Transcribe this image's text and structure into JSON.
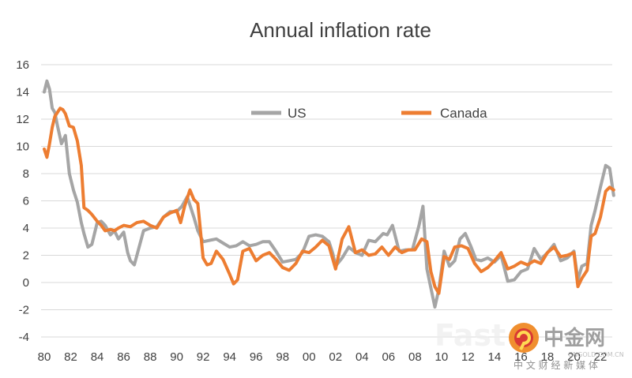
{
  "chart_data": {
    "type": "line",
    "title": "Annual inflation rate",
    "xlabel": "",
    "ylabel": "",
    "xlim": [
      1980,
      2023
    ],
    "ylim": [
      -4,
      16
    ],
    "yticks": [
      -4,
      -2,
      0,
      2,
      4,
      6,
      8,
      10,
      12,
      14,
      16
    ],
    "xtick_labels": [
      "80",
      "82",
      "84",
      "86",
      "88",
      "90",
      "92",
      "94",
      "96",
      "98",
      "00",
      "02",
      "04",
      "06",
      "08",
      "10",
      "12",
      "14",
      "16",
      "18",
      "20",
      "22"
    ],
    "xtick_years": [
      1980,
      1982,
      1984,
      1986,
      1988,
      1990,
      1992,
      1994,
      1996,
      1998,
      2000,
      2002,
      2004,
      2006,
      2008,
      2010,
      2012,
      2014,
      2016,
      2018,
      2020,
      2022
    ],
    "grid": true,
    "legend_position": "top-center",
    "series": [
      {
        "name": "US",
        "color": "#a5a5a5",
        "x": [
          1980.0,
          1980.2,
          1980.4,
          1980.6,
          1980.8,
          1981.0,
          1981.3,
          1981.6,
          1981.9,
          1982.2,
          1982.5,
          1982.8,
          1983.0,
          1983.3,
          1983.6,
          1984.0,
          1984.3,
          1984.6,
          1985.0,
          1985.3,
          1985.6,
          1986.0,
          1986.3,
          1986.5,
          1986.8,
          1987.0,
          1987.5,
          1988.0,
          1988.5,
          1989.0,
          1989.5,
          1990.0,
          1990.4,
          1990.8,
          1991.0,
          1991.3,
          1991.6,
          1992.0,
          1992.5,
          1993.0,
          1993.5,
          1994.0,
          1994.5,
          1995.0,
          1995.5,
          1996.0,
          1996.5,
          1997.0,
          1997.5,
          1998.0,
          1998.5,
          1999.0,
          1999.5,
          2000.0,
          2000.5,
          2001.0,
          2001.5,
          2001.8,
          2002.0,
          2002.5,
          2003.0,
          2003.5,
          2004.0,
          2004.5,
          2005.0,
          2005.6,
          2005.9,
          2006.3,
          2006.8,
          2007.3,
          2007.8,
          2008.3,
          2008.6,
          2008.9,
          2009.2,
          2009.5,
          2009.8,
          2010.2,
          2010.6,
          2011.0,
          2011.4,
          2011.8,
          2012.2,
          2012.6,
          2013.0,
          2013.5,
          2014.0,
          2014.5,
          2015.0,
          2015.5,
          2016.0,
          2016.5,
          2017.0,
          2017.5,
          2018.0,
          2018.5,
          2019.0,
          2019.5,
          2020.0,
          2020.3,
          2020.6,
          2021.0,
          2021.3,
          2021.6,
          2022.0,
          2022.4,
          2022.7,
          2023.0
        ],
        "y": [
          14.0,
          14.8,
          14.2,
          12.8,
          12.5,
          11.5,
          10.2,
          10.8,
          8.0,
          6.8,
          5.9,
          4.4,
          3.6,
          2.6,
          2.8,
          4.4,
          4.5,
          4.2,
          3.5,
          3.8,
          3.2,
          3.7,
          2.2,
          1.6,
          1.3,
          2.0,
          3.8,
          4.0,
          4.1,
          4.8,
          5.2,
          5.2,
          5.6,
          6.3,
          5.7,
          4.8,
          3.8,
          3.0,
          3.1,
          3.2,
          2.9,
          2.6,
          2.7,
          3.0,
          2.7,
          2.8,
          3.0,
          3.0,
          2.3,
          1.5,
          1.6,
          1.7,
          2.2,
          3.4,
          3.5,
          3.4,
          3.0,
          2.1,
          1.2,
          1.8,
          2.6,
          2.2,
          2.0,
          3.1,
          3.0,
          3.6,
          3.5,
          4.2,
          2.3,
          2.4,
          2.4,
          4.2,
          5.6,
          1.0,
          -0.4,
          -1.8,
          -0.5,
          2.3,
          1.2,
          1.6,
          3.2,
          3.6,
          2.7,
          1.7,
          1.6,
          1.8,
          1.5,
          2.0,
          0.1,
          0.2,
          0.8,
          1.0,
          2.5,
          1.7,
          2.2,
          2.8,
          1.6,
          1.8,
          2.3,
          0.2,
          1.2,
          1.4,
          4.2,
          5.3,
          7.0,
          8.6,
          8.4,
          6.4
        ]
      },
      {
        "name": "Canada",
        "color": "#ed7d31",
        "x": [
          1980.0,
          1980.2,
          1980.4,
          1980.6,
          1980.8,
          1981.0,
          1981.2,
          1981.4,
          1981.6,
          1981.9,
          1982.2,
          1982.5,
          1982.8,
          1983.0,
          1983.3,
          1983.6,
          1984.0,
          1984.3,
          1984.6,
          1985.0,
          1985.3,
          1985.6,
          1986.0,
          1986.5,
          1987.0,
          1987.5,
          1988.0,
          1988.5,
          1989.0,
          1989.5,
          1990.0,
          1990.3,
          1990.6,
          1991.0,
          1991.3,
          1991.6,
          1992.0,
          1992.3,
          1992.6,
          1993.0,
          1993.5,
          1994.0,
          1994.3,
          1994.6,
          1995.0,
          1995.5,
          1996.0,
          1996.5,
          1997.0,
          1997.5,
          1998.0,
          1998.5,
          1999.0,
          1999.5,
          2000.0,
          2000.5,
          2001.0,
          2001.5,
          2002.0,
          2002.5,
          2003.0,
          2003.5,
          2004.0,
          2004.5,
          2005.0,
          2005.5,
          2006.0,
          2006.5,
          2007.0,
          2007.5,
          2008.0,
          2008.5,
          2008.9,
          2009.2,
          2009.5,
          2009.8,
          2010.2,
          2010.6,
          2011.0,
          2011.5,
          2012.0,
          2012.5,
          2013.0,
          2013.5,
          2014.0,
          2014.5,
          2015.0,
          2015.5,
          2016.0,
          2016.5,
          2017.0,
          2017.5,
          2018.0,
          2018.5,
          2019.0,
          2019.5,
          2020.0,
          2020.3,
          2020.6,
          2021.0,
          2021.3,
          2021.6,
          2022.0,
          2022.4,
          2022.7,
          2023.0
        ],
        "y": [
          9.8,
          9.2,
          10.2,
          11.4,
          12.2,
          12.5,
          12.8,
          12.7,
          12.4,
          11.5,
          11.4,
          10.4,
          8.6,
          5.5,
          5.3,
          5.0,
          4.5,
          4.2,
          3.8,
          3.9,
          3.8,
          4.0,
          4.2,
          4.1,
          4.4,
          4.5,
          4.2,
          4.0,
          4.8,
          5.1,
          5.3,
          4.4,
          5.6,
          6.8,
          6.1,
          5.8,
          1.8,
          1.3,
          1.4,
          2.3,
          1.7,
          0.6,
          -0.1,
          0.2,
          2.3,
          2.5,
          1.6,
          2.0,
          2.2,
          1.7,
          1.1,
          0.9,
          1.4,
          2.3,
          2.2,
          2.6,
          3.1,
          2.7,
          1.0,
          3.2,
          4.1,
          2.2,
          2.4,
          2.0,
          2.1,
          2.6,
          2.0,
          2.6,
          2.2,
          2.4,
          2.4,
          3.2,
          3.0,
          0.8,
          -0.3,
          -0.8,
          1.9,
          1.7,
          2.6,
          2.7,
          2.5,
          1.4,
          0.8,
          1.1,
          1.6,
          2.2,
          1.0,
          1.2,
          1.5,
          1.3,
          1.6,
          1.4,
          2.2,
          2.6,
          1.9,
          2.0,
          2.2,
          -0.3,
          0.3,
          0.9,
          3.4,
          3.6,
          4.8,
          6.7,
          7.0,
          6.8
        ]
      }
    ]
  },
  "watermark": {
    "left_text": "Fast",
    "brand_cn": "中金网",
    "brand_url": "GNGOLD.COM.CN",
    "brand_tagline": "中 文 财 经 新 媒 体"
  }
}
